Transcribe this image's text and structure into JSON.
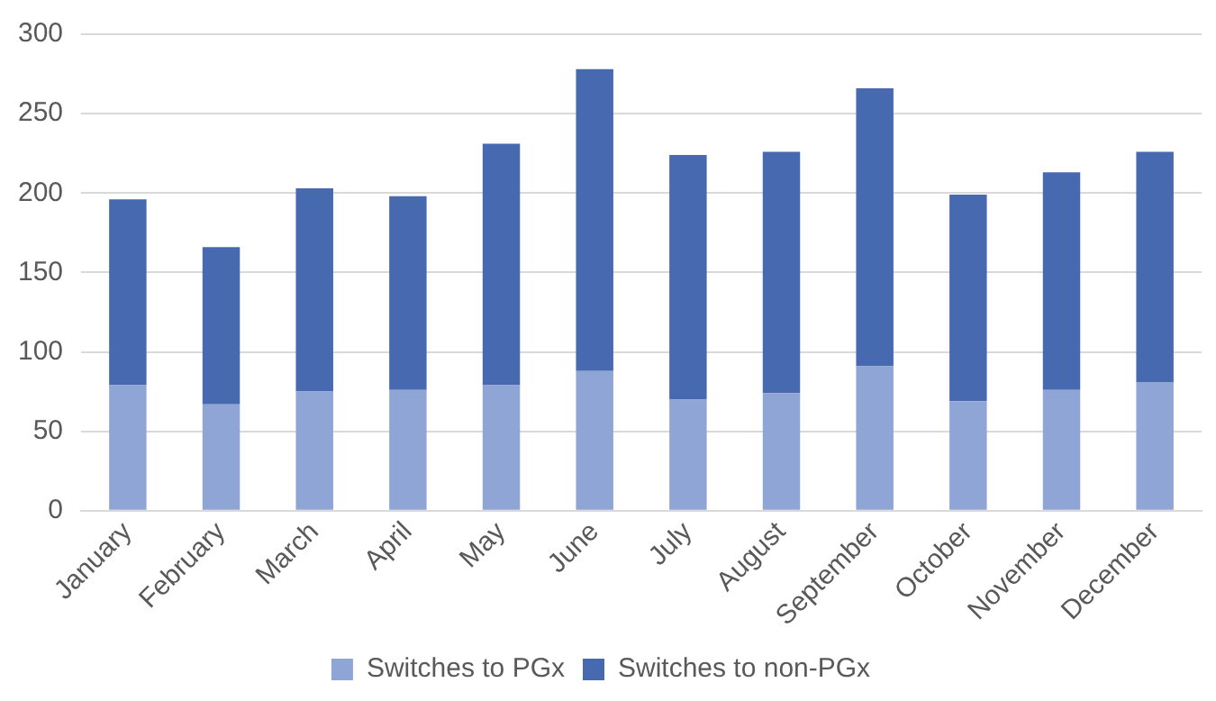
{
  "chart_data": {
    "type": "bar",
    "stacked": true,
    "categories": [
      "January",
      "February",
      "March",
      "April",
      "May",
      "June",
      "July",
      "August",
      "September",
      "October",
      "November",
      "December"
    ],
    "series": [
      {
        "name": "Switches to PGx",
        "color": "#8fa5d6",
        "values": [
          79,
          67,
          75,
          76,
          79,
          88,
          70,
          74,
          91,
          69,
          76,
          81
        ]
      },
      {
        "name": "Switches to non-PGx",
        "color": "#4769b0",
        "values": [
          117,
          99,
          128,
          122,
          152,
          190,
          154,
          152,
          175,
          130,
          137,
          145
        ]
      }
    ],
    "ylim": [
      0,
      300
    ],
    "yticks": [
      0,
      50,
      100,
      150,
      200,
      250,
      300
    ],
    "grid": "y",
    "legend": "bottom"
  }
}
